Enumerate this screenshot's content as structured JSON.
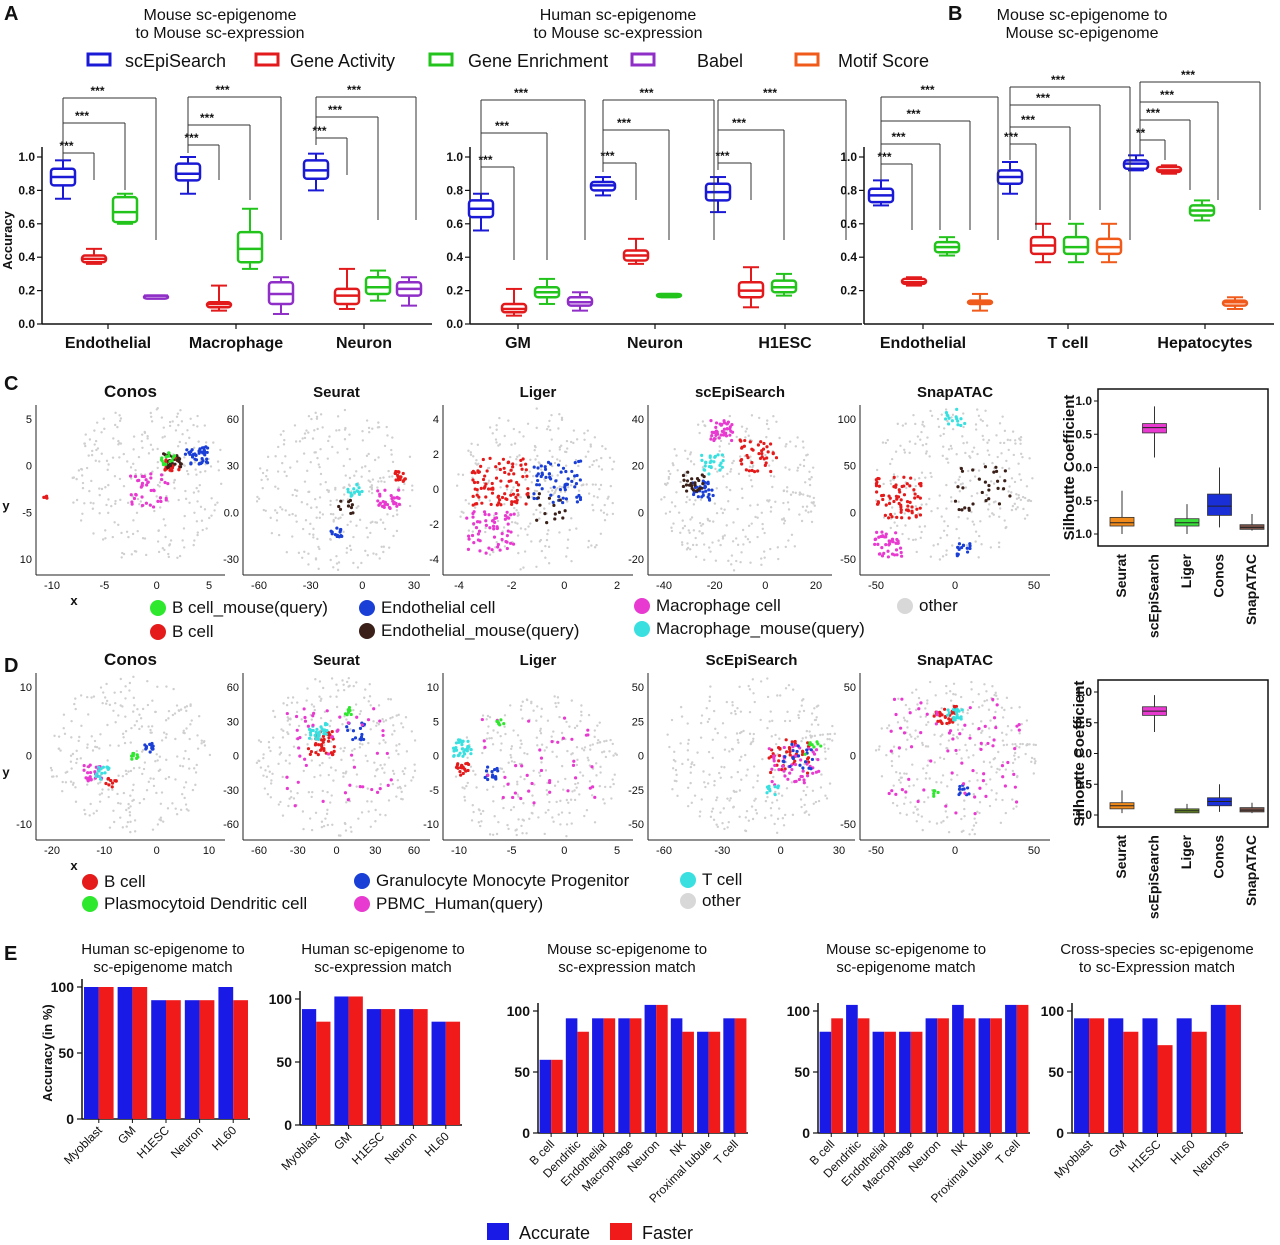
{
  "figure": {
    "panels": {
      "A": "A",
      "B": "B",
      "C": "C",
      "D": "D",
      "E": "E"
    }
  },
  "panelA": {
    "legend": [
      {
        "label": "scEpiSearch",
        "color": "#1a1ad6"
      },
      {
        "label": "Gene Activity",
        "color": "#e31a1c"
      },
      {
        "label": "Gene Enrichment",
        "color": "#22c41c"
      },
      {
        "label": "Babel",
        "color": "#8f2fc7"
      },
      {
        "label": "Motif Score",
        "color": "#f05a1a"
      }
    ]
  },
  "panelC": {
    "legend": [
      {
        "label": "B cell_mouse(query)",
        "color": "#2ee82e"
      },
      {
        "label": "B cell",
        "color": "#e51a1a"
      },
      {
        "label": "Endothelial cell",
        "color": "#1a3fd6"
      },
      {
        "label": "Endothelial_mouse(query)",
        "color": "#3a2018"
      },
      {
        "label": "Macrophage cell",
        "color": "#e83ad0"
      },
      {
        "label": "Macrophage_mouse(query)",
        "color": "#3ae0e0"
      },
      {
        "label": "other",
        "color": "#d8d8d8"
      }
    ]
  },
  "panelD": {
    "legend": [
      {
        "label": "B cell",
        "color": "#e51a1a"
      },
      {
        "label": "Plasmocytoid Dendritic cell",
        "color": "#2ee82e"
      },
      {
        "label": "Granulocyte Monocyte Progenitor",
        "color": "#1a3fd6"
      },
      {
        "label": "PBMC_Human(query)",
        "color": "#e83ad0"
      },
      {
        "label": "T cell",
        "color": "#3ae0e0"
      },
      {
        "label": "other",
        "color": "#d8d8d8"
      }
    ]
  },
  "panelE": {
    "legend": [
      {
        "label": "Accurate",
        "color": "#1a1ae6"
      },
      {
        "label": "Faster",
        "color": "#f01a1a"
      }
    ]
  },
  "chart_data": [
    {
      "id": "A1",
      "type": "box",
      "title": "Mouse sc-epigenome to Mouse sc-expression",
      "ylabel": "Accuracy",
      "ylim": [
        0,
        1.0
      ],
      "yticks": [
        "0.0",
        "0.2",
        "0.4",
        "0.6",
        "0.8",
        "1.0"
      ],
      "groups": [
        "Endothelial",
        "Macrophage",
        "Neuron"
      ],
      "boxes": [
        {
          "group": "Endothelial",
          "series": "scEpiSearch",
          "min": 0.75,
          "q1": 0.83,
          "median": 0.88,
          "q3": 0.93,
          "max": 0.98
        },
        {
          "group": "Endothelial",
          "series": "Gene Activity",
          "min": 0.36,
          "q1": 0.37,
          "median": 0.39,
          "q3": 0.41,
          "max": 0.45
        },
        {
          "group": "Endothelial",
          "series": "Gene Enrichment",
          "min": 0.6,
          "q1": 0.61,
          "median": 0.67,
          "q3": 0.76,
          "max": 0.78
        },
        {
          "group": "Endothelial",
          "series": "Babel",
          "min": 0.17,
          "q1": 0.17,
          "median": 0.17,
          "q3": 0.17,
          "max": 0.17
        },
        {
          "group": "Macrophage",
          "series": "scEpiSearch",
          "min": 0.78,
          "q1": 0.86,
          "median": 0.9,
          "q3": 0.96,
          "max": 1.0
        },
        {
          "group": "Macrophage",
          "series": "Gene Activity",
          "min": 0.08,
          "q1": 0.1,
          "median": 0.12,
          "q3": 0.13,
          "max": 0.23
        },
        {
          "group": "Macrophage",
          "series": "Gene Enrichment",
          "min": 0.33,
          "q1": 0.37,
          "median": 0.45,
          "q3": 0.55,
          "max": 0.69
        },
        {
          "group": "Macrophage",
          "series": "Babel",
          "min": 0.06,
          "q1": 0.12,
          "median": 0.18,
          "q3": 0.25,
          "max": 0.28
        },
        {
          "group": "Neuron",
          "series": "scEpiSearch",
          "min": 0.8,
          "q1": 0.87,
          "median": 0.92,
          "q3": 0.98,
          "max": 1.02
        },
        {
          "group": "Neuron",
          "series": "Gene Activity",
          "min": 0.09,
          "q1": 0.12,
          "median": 0.17,
          "q3": 0.21,
          "max": 0.33
        },
        {
          "group": "Neuron",
          "series": "Gene Enrichment",
          "min": 0.14,
          "q1": 0.18,
          "median": 0.22,
          "q3": 0.28,
          "max": 0.32
        },
        {
          "group": "Neuron",
          "series": "Babel",
          "min": 0.11,
          "q1": 0.17,
          "median": 0.21,
          "q3": 0.25,
          "max": 0.28
        }
      ],
      "significance": "***"
    },
    {
      "id": "A2",
      "type": "box",
      "title": "Human sc-epigenome to Mouse sc-expression",
      "ylim": [
        0,
        1.0
      ],
      "yticks": [
        "0.0",
        "0.2",
        "0.4",
        "0.6",
        "0.8",
        "1.0"
      ],
      "groups": [
        "GM",
        "Neuron",
        "H1ESC"
      ],
      "boxes": [
        {
          "group": "GM",
          "series": "scEpiSearch",
          "min": 0.56,
          "q1": 0.64,
          "median": 0.69,
          "q3": 0.74,
          "max": 0.78
        },
        {
          "group": "GM",
          "series": "Gene Activity",
          "min": 0.05,
          "q1": 0.07,
          "median": 0.09,
          "q3": 0.12,
          "max": 0.21
        },
        {
          "group": "GM",
          "series": "Gene Enrichment",
          "min": 0.12,
          "q1": 0.16,
          "median": 0.19,
          "q3": 0.22,
          "max": 0.27
        },
        {
          "group": "GM",
          "series": "Babel",
          "min": 0.08,
          "q1": 0.11,
          "median": 0.13,
          "q3": 0.16,
          "max": 0.19
        },
        {
          "group": "Neuron",
          "series": "scEpiSearch",
          "min": 0.77,
          "q1": 0.8,
          "median": 0.83,
          "q3": 0.85,
          "max": 0.88
        },
        {
          "group": "Neuron",
          "series": "Gene Activity",
          "min": 0.36,
          "q1": 0.38,
          "median": 0.41,
          "q3": 0.44,
          "max": 0.51
        },
        {
          "group": "Neuron",
          "series": "Gene Enrichment",
          "min": 0.16,
          "q1": 0.17,
          "median": 0.17,
          "q3": 0.18,
          "max": 0.18
        },
        {
          "group": "H1ESC",
          "series": "scEpiSearch",
          "min": 0.67,
          "q1": 0.74,
          "median": 0.79,
          "q3": 0.84,
          "max": 0.88
        },
        {
          "group": "H1ESC",
          "series": "Gene Activity",
          "min": 0.1,
          "q1": 0.16,
          "median": 0.2,
          "q3": 0.25,
          "max": 0.34
        },
        {
          "group": "H1ESC",
          "series": "Gene Enrichment",
          "min": 0.17,
          "q1": 0.19,
          "median": 0.22,
          "q3": 0.26,
          "max": 0.3
        }
      ],
      "significance": "***"
    },
    {
      "id": "B",
      "type": "box",
      "title": "Mouse sc-epigenome to Mouse sc-epigenome",
      "ylim": [
        0,
        1.0
      ],
      "yticks": [
        "0.2",
        "0.4",
        "0.6",
        "0.8",
        "1.0"
      ],
      "groups": [
        "Endothelial",
        "T cell",
        "Hepatocytes"
      ],
      "boxes": [
        {
          "group": "Endothelial",
          "series": "scEpiSearch",
          "min": 0.71,
          "q1": 0.73,
          "median": 0.77,
          "q3": 0.81,
          "max": 0.86
        },
        {
          "group": "Endothelial",
          "series": "Gene Activity",
          "min": 0.23,
          "q1": 0.24,
          "median": 0.25,
          "q3": 0.27,
          "max": 0.28
        },
        {
          "group": "Endothelial",
          "series": "Gene Enrichment",
          "min": 0.41,
          "q1": 0.43,
          "median": 0.46,
          "q3": 0.49,
          "max": 0.52
        },
        {
          "group": "Endothelial",
          "series": "Motif Score",
          "min": 0.08,
          "q1": 0.12,
          "median": 0.13,
          "q3": 0.14,
          "max": 0.18
        },
        {
          "group": "T cell",
          "series": "scEpiSearch",
          "min": 0.78,
          "q1": 0.84,
          "median": 0.88,
          "q3": 0.92,
          "max": 0.97
        },
        {
          "group": "T cell",
          "series": "Gene Activity",
          "min": 0.37,
          "q1": 0.42,
          "median": 0.47,
          "q3": 0.52,
          "max": 0.6
        },
        {
          "group": "T cell",
          "series": "Gene Enrichment",
          "min": 0.37,
          "q1": 0.42,
          "median": 0.46,
          "q3": 0.52,
          "max": 0.6
        },
        {
          "group": "T cell",
          "series": "Motif Score",
          "min": 0.37,
          "q1": 0.42,
          "median": 0.46,
          "q3": 0.51,
          "max": 0.6
        },
        {
          "group": "Hepatocytes",
          "series": "scEpiSearch",
          "min": 0.92,
          "q1": 0.93,
          "median": 0.96,
          "q3": 0.98,
          "max": 1.01
        },
        {
          "group": "Hepatocytes",
          "series": "Gene Activity",
          "min": 0.9,
          "q1": 0.91,
          "median": 0.92,
          "q3": 0.94,
          "max": 0.95
        },
        {
          "group": "Hepatocytes",
          "series": "Gene Enrichment",
          "min": 0.62,
          "q1": 0.65,
          "median": 0.68,
          "q3": 0.71,
          "max": 0.74
        },
        {
          "group": "Hepatocytes",
          "series": "Motif Score",
          "min": 0.09,
          "q1": 0.11,
          "median": 0.13,
          "q3": 0.14,
          "max": 0.16
        }
      ],
      "significance": [
        "***",
        "**"
      ]
    },
    {
      "id": "C-scatter",
      "type": "scatter",
      "plots": [
        {
          "title": "Conos",
          "xticks": [
            "-10",
            "-5",
            "0",
            "5"
          ],
          "yticks": [
            "5",
            "0",
            "-5",
            "10"
          ],
          "xlabel": "x",
          "ylabel": "y"
        },
        {
          "title": "Seurat",
          "xticks": [
            "-60",
            "-30",
            "0",
            "30"
          ],
          "yticks": [
            "60",
            "30",
            "0.0",
            "-30"
          ]
        },
        {
          "title": "Liger",
          "xticks": [
            "-4",
            "-2",
            "0",
            "2"
          ],
          "yticks": [
            "4",
            "2",
            "0",
            "-2",
            "-4"
          ]
        },
        {
          "title": "scEpiSearch",
          "xticks": [
            "-40",
            "-20",
            "0",
            "20"
          ],
          "yticks": [
            "40",
            "20",
            "0",
            "-20"
          ]
        },
        {
          "title": "SnapATAC",
          "xticks": [
            "-50",
            "0",
            "50"
          ],
          "yticks": [
            "100",
            "50",
            "0",
            "-50"
          ]
        }
      ]
    },
    {
      "id": "C-silhouette",
      "type": "box",
      "ylabel": "Silhoutte Coefficient",
      "yticks": [
        "1.0",
        "0.5",
        "0.0",
        "0.5",
        "1.0"
      ],
      "categories": [
        "Seurat",
        "scEpiSearch",
        "Liger",
        "Conos",
        "SnapATAC"
      ],
      "boxes": [
        {
          "name": "Seurat",
          "color": "#f08a1a",
          "min": -1.0,
          "q1": -0.88,
          "median": -0.83,
          "q3": -0.75,
          "max": -0.35
        },
        {
          "name": "scEpiSearch",
          "color": "#e83ad0",
          "min": 0.15,
          "q1": 0.52,
          "median": 0.6,
          "q3": 0.66,
          "max": 0.92
        },
        {
          "name": "Liger",
          "color": "#3ae03a",
          "min": -1.0,
          "q1": -0.88,
          "median": -0.83,
          "q3": -0.77,
          "max": -0.55
        },
        {
          "name": "Conos",
          "color": "#1a2fd6",
          "min": -0.9,
          "q1": -0.72,
          "median": -0.58,
          "q3": -0.4,
          "max": 0.0
        },
        {
          "name": "SnapATAC",
          "color": "#7a5248",
          "min": -0.95,
          "q1": -0.93,
          "median": -0.9,
          "q3": -0.86,
          "max": -0.7
        }
      ]
    },
    {
      "id": "D-scatter",
      "type": "scatter",
      "plots": [
        {
          "title": "Conos",
          "xticks": [
            "-20",
            "-10",
            "0",
            "10"
          ],
          "yticks": [
            "10",
            "0",
            "-10"
          ],
          "xlabel": "x",
          "ylabel": "y"
        },
        {
          "title": "Seurat",
          "xticks": [
            "-60",
            "-30",
            "0",
            "30",
            "60"
          ],
          "yticks": [
            "60",
            "30",
            "0",
            "-30",
            "-60"
          ]
        },
        {
          "title": "Liger",
          "xticks": [
            "-10",
            "-5",
            "0",
            "5"
          ],
          "yticks": [
            "10",
            "5",
            "0",
            "-5",
            "-10"
          ]
        },
        {
          "title": "ScEpiSearch",
          "xticks": [
            "-60",
            "-30",
            "0",
            "30"
          ],
          "yticks": [
            "50",
            "25",
            "0",
            "-25",
            "-50"
          ]
        },
        {
          "title": "SnapATAC",
          "xticks": [
            "-50",
            "0",
            "50"
          ],
          "yticks": [
            "50",
            "0",
            "-50"
          ]
        }
      ]
    },
    {
      "id": "D-silhouette",
      "type": "box",
      "ylabel": "Silhoutte Coefficient",
      "yticks": [
        "1.0",
        "0.5",
        "0.0",
        "0.5",
        "1.0"
      ],
      "categories": [
        "Seurat",
        "scEpiSearch",
        "Liger",
        "Conos",
        "SnapATAC"
      ],
      "boxes": [
        {
          "name": "Seurat",
          "color": "#f08a1a",
          "min": -0.97,
          "q1": -0.9,
          "median": -0.85,
          "q3": -0.8,
          "max": -0.6
        },
        {
          "name": "scEpiSearch",
          "color": "#e83ad0",
          "min": 0.35,
          "q1": 0.62,
          "median": 0.69,
          "q3": 0.76,
          "max": 0.95
        },
        {
          "name": "Liger",
          "color": "#6b8e23",
          "min": -0.97,
          "q1": -0.95,
          "median": -0.93,
          "q3": -0.9,
          "max": -0.82
        },
        {
          "name": "Conos",
          "color": "#1a2fd6",
          "min": -0.95,
          "q1": -0.85,
          "median": -0.78,
          "q3": -0.72,
          "max": -0.5
        },
        {
          "name": "SnapATAC",
          "color": "#7a5248",
          "min": -0.97,
          "q1": -0.95,
          "median": -0.92,
          "q3": -0.88,
          "max": -0.8
        }
      ]
    },
    {
      "id": "E1",
      "type": "bar",
      "title": "Human sc-epigenome to sc-epigenome match",
      "ylabel": "Accuracy (in %)",
      "ylim": [
        0,
        100
      ],
      "yticks": [
        "0",
        "50",
        "100"
      ],
      "categories": [
        "Myoblast",
        "GM",
        "H1ESC",
        "Neuron",
        "HL60"
      ],
      "series": [
        {
          "name": "Accurate",
          "values": [
            100,
            100,
            90,
            90,
            100
          ]
        },
        {
          "name": "Faster",
          "values": [
            100,
            100,
            90,
            90,
            90
          ]
        }
      ]
    },
    {
      "id": "E2",
      "type": "bar",
      "title": "Human sc-epigenome to sc-expression match",
      "ylim": [
        0,
        100
      ],
      "yticks": [
        "0",
        "50",
        "100"
      ],
      "categories": [
        "Myoblast",
        "GM",
        "H1ESC",
        "Neuron",
        "HL60"
      ],
      "series": [
        {
          "name": "Accurate",
          "values": [
            92,
            102,
            92,
            92,
            82
          ]
        },
        {
          "name": "Faster",
          "values": [
            82,
            102,
            92,
            92,
            82
          ]
        }
      ]
    },
    {
      "id": "E3",
      "type": "bar",
      "title": "Mouse sc-epigenome to sc-expression match",
      "ylim": [
        0,
        100
      ],
      "yticks": [
        "0",
        "50",
        "100"
      ],
      "categories": [
        "B cell",
        "Dendritic",
        "Endothelial",
        "Macrophage",
        "Neuron",
        "NK",
        "Proximal tubule",
        "T cell"
      ],
      "series": [
        {
          "name": "Accurate",
          "values": [
            60,
            94,
            94,
            94,
            105,
            94,
            83,
            94
          ]
        },
        {
          "name": "Faster",
          "values": [
            60,
            83,
            94,
            94,
            105,
            83,
            83,
            94
          ]
        }
      ]
    },
    {
      "id": "E4",
      "type": "bar",
      "title": "Mouse sc-epigenome to sc-epigenome match",
      "ylim": [
        0,
        100
      ],
      "yticks": [
        "0",
        "50",
        "100"
      ],
      "categories": [
        "B cell",
        "Dendritic",
        "Endothelial",
        "Macrophage",
        "Neuron",
        "NK",
        "Proximal tubule",
        "T cell"
      ],
      "series": [
        {
          "name": "Accurate",
          "values": [
            83,
            105,
            83,
            83,
            94,
            105,
            94,
            105
          ]
        },
        {
          "name": "Faster",
          "values": [
            94,
            94,
            83,
            83,
            94,
            94,
            94,
            105
          ]
        }
      ]
    },
    {
      "id": "E5",
      "type": "bar",
      "title": "Cross-species sc-epigenome to sc-Expression match",
      "ylim": [
        0,
        100
      ],
      "yticks": [
        "0",
        "50",
        "100"
      ],
      "categories": [
        "Myoblast",
        "GM",
        "H1ESC",
        "HL60",
        "Neurons"
      ],
      "series": [
        {
          "name": "Accurate",
          "values": [
            94,
            94,
            94,
            94,
            105
          ]
        },
        {
          "name": "Faster",
          "values": [
            94,
            83,
            72,
            83,
            105
          ]
        }
      ]
    }
  ]
}
